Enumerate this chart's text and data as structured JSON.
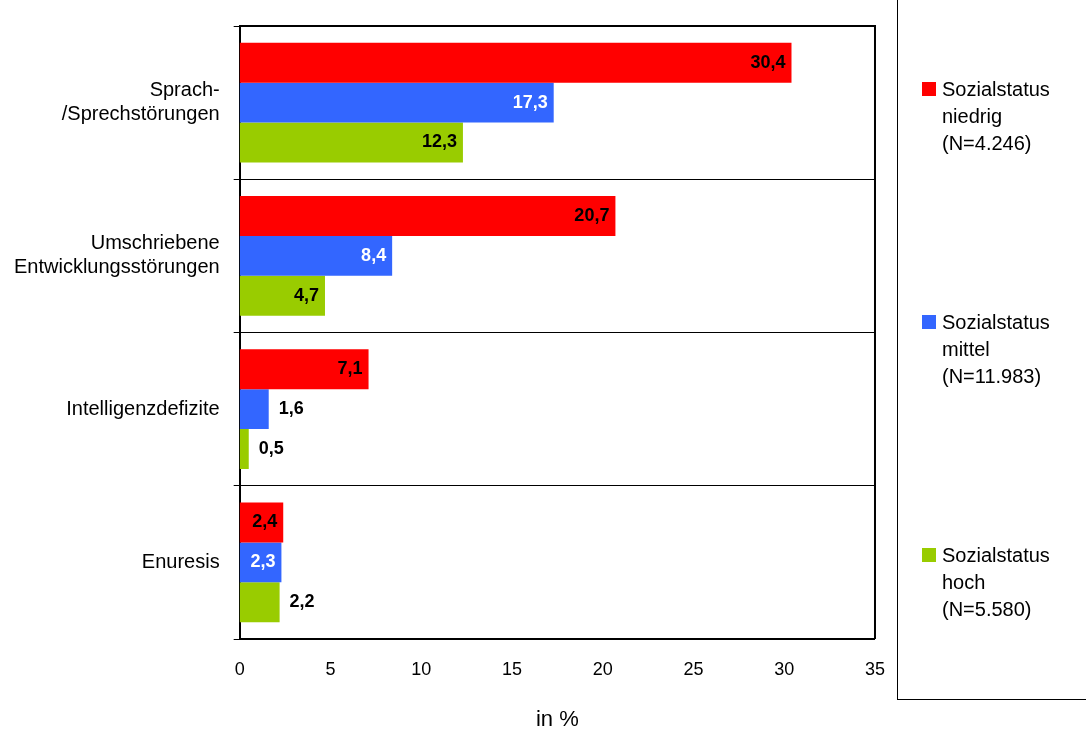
{
  "chart_data": {
    "type": "bar",
    "orientation": "horizontal",
    "categories": [
      "Sprach-/Sprechstörungen",
      "Umschriebene Entwicklungsstörungen",
      "Intelligenzdefizite",
      "Enuresis"
    ],
    "series": [
      {
        "name": "Sozialstatus niedrig (N=4.246)",
        "color": "#ff0000",
        "values": [
          30.4,
          20.7,
          7.1,
          2.4
        ],
        "value_labels": [
          "30,4",
          "20,7",
          "7,1",
          "2,4"
        ]
      },
      {
        "name": "Sozialstatus mittel (N=11.983)",
        "color": "#3366ff",
        "values": [
          17.3,
          8.4,
          1.6,
          2.3
        ],
        "value_labels": [
          "17,3",
          "8,4",
          "1,6",
          "2,3"
        ]
      },
      {
        "name": "Sozialstatus hoch (N=5.580)",
        "color": "#99cc00",
        "values": [
          12.3,
          4.7,
          0.5,
          2.2
        ],
        "value_labels": [
          "12,3",
          "4,7",
          "0,5",
          "2,2"
        ]
      }
    ],
    "xlabel": "in %",
    "xlim": [
      0,
      35
    ],
    "xticks": [
      0,
      5,
      10,
      15,
      20,
      25,
      30,
      35
    ],
    "grid": "y",
    "legend": "right"
  }
}
